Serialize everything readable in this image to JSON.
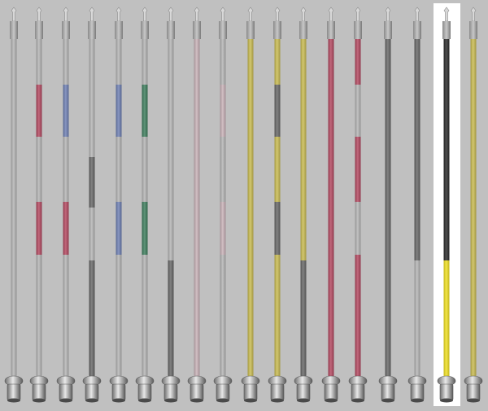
{
  "poles": [
    {
      "bands": [
        "#b4b4b4",
        "#b4b4b4",
        "#b4b4b4",
        "#b4b4b4",
        "#b4b4b4",
        "#b4b4b4",
        "#b4b4b4",
        "#b4b4b4"
      ]
    },
    {
      "bands": [
        "#b4b4b4",
        "#b3475f",
        "#b4b4b4",
        "#b4b4b4",
        "#b3475f",
        "#b3475f",
        "#b4b4b4",
        "#b4b4b4"
      ]
    },
    {
      "bands": [
        "#b4b4b4",
        "#6d7fb3",
        "#b4b4b4",
        "#b4b4b4",
        "#b3475f",
        "#b3475f",
        "#b4b4b4",
        "#b4b4b4"
      ]
    },
    {
      "bands": [
        "#b4b4b4",
        "#b4b4b4",
        "#b4b4b4",
        "#666666",
        "#666666",
        "#b4b4b4",
        "#b4b4b4",
        "#666666"
      ]
    },
    {
      "bands": [
        "#b4b4b4",
        "#6d7fb3",
        "#b4b4b4",
        "#b4b4b4",
        "#6d7fb3",
        "#6d7fb3",
        "#b4b4b4",
        "#b4b4b4"
      ]
    },
    {
      "bands": [
        "#b4b4b4",
        "#3d7d5c",
        "#b4b4b4",
        "#b4b4b4",
        "#3d7d5c",
        "#3d7d5c",
        "#b4b4b4",
        "#b4b4b4"
      ]
    },
    {
      "bands": [
        "#b4b4b4",
        "#b4b4b4",
        "#b4b4b4",
        "#b4b4b4",
        "#b4b4b4",
        "#b4b4b4",
        "#b4b4b4",
        "#666666"
      ]
    },
    {
      "bands": [
        "#c8b1b7",
        "#c8b1b7",
        "#c8b1b7",
        "#c8b1b7",
        "#c8b1b7",
        "#c8b1b7",
        "#c8b1b7",
        "#c8b1b7"
      ]
    },
    {
      "bands": [
        "#b4b4b4",
        "#c8b1b7",
        "#b4b4b4",
        "#b4b4b4",
        "#c8b1b7",
        "#c8b1b7",
        "#b4b4b4",
        "#b4b4b4"
      ]
    },
    {
      "bands": [
        "#c9bb50",
        "#c9bb50",
        "#c9bb50",
        "#c9bb50",
        "#c9bb50",
        "#c9bb50",
        "#c9bb50",
        "#c9bb50"
      ]
    },
    {
      "bands": [
        "#c9bb50",
        "#666666",
        "#c9bb50",
        "#c9bb50",
        "#666666",
        "#666666",
        "#c9bb50",
        "#c9bb50"
      ]
    },
    {
      "bands": [
        "#c9bb50",
        "#c9bb50",
        "#c9bb50",
        "#c9bb50",
        "#c9bb50",
        "#c9bb50",
        "#c9bb50",
        "#666666"
      ]
    },
    {
      "bands": [
        "#b3475f",
        "#b3475f",
        "#b3475f",
        "#b3475f",
        "#b3475f",
        "#b3475f",
        "#b3475f",
        "#b3475f"
      ]
    },
    {
      "bands": [
        "#b3475f",
        "#b4b4b4",
        "#b3475f",
        "#b3475f",
        "#b4b4b4",
        "#b4b4b4",
        "#b3475f",
        "#b3475f"
      ]
    },
    {
      "bands": [
        "#666666",
        "#666666",
        "#666666",
        "#666666",
        "#666666",
        "#666666",
        "#666666",
        "#666666"
      ]
    },
    {
      "bands": [
        "#666666",
        "#666666",
        "#666666",
        "#666666",
        "#666666",
        "#666666",
        "#666666",
        "#b4b4b4"
      ]
    },
    {
      "bands": [
        "#2a2a2a",
        "#2a2a2a",
        "#2a2a2a",
        "#2a2a2a",
        "#2a2a2a",
        "#2a2a2a",
        "#2a2a2a",
        "#f0e020"
      ]
    },
    {
      "bands": [
        "#c9bb50",
        "#c9bb50",
        "#c9bb50",
        "#c9bb50",
        "#c9bb50",
        "#c9bb50",
        "#c9bb50",
        "#c9bb50"
      ]
    }
  ],
  "selected": 16
}
